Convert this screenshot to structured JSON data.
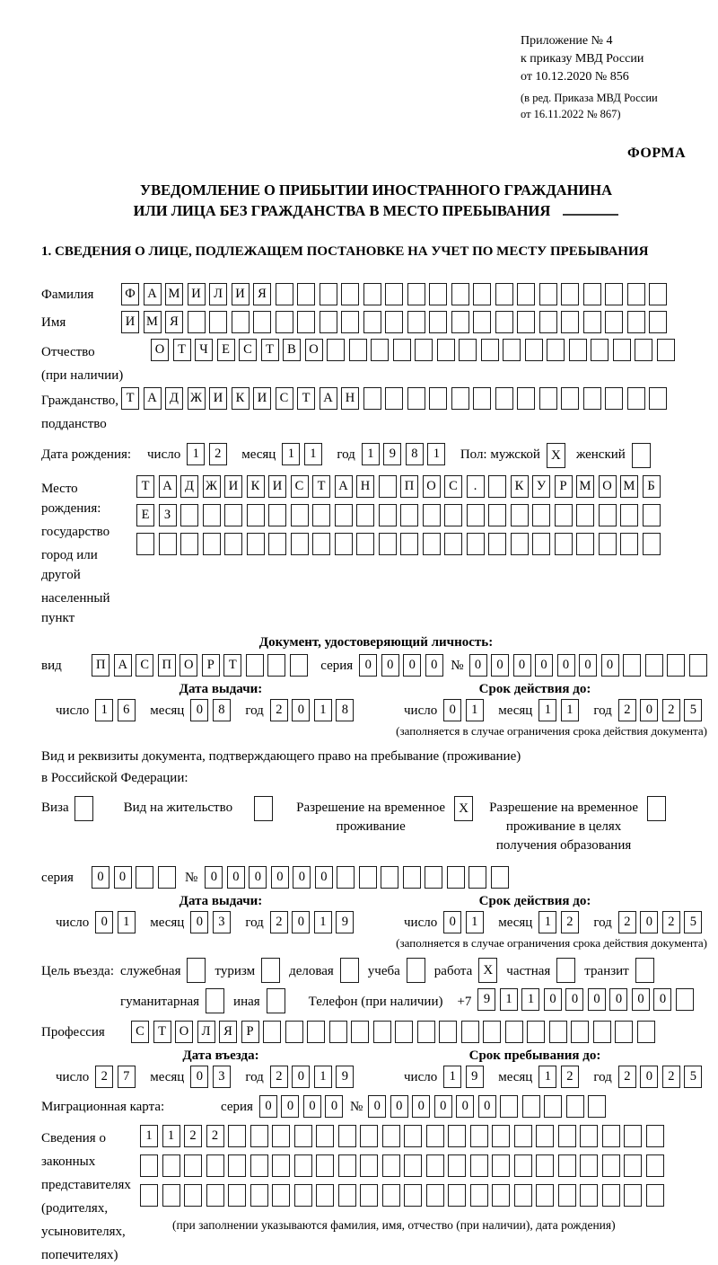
{
  "date_labels": {
    "day": "число",
    "month": "месяц",
    "year": "год"
  },
  "header_note": {
    "lines": [
      "Приложение № 4",
      "к приказу МВД России",
      "от 10.12.2020 № 856"
    ],
    "sub_lines": [
      "(в ред. Приказа МВД России",
      "от 16.11.2022 № 867)"
    ],
    "form_label": "ФОРМА"
  },
  "title": {
    "line1": "УВЕДОМЛЕНИЕ О ПРИБЫТИИ ИНОСТРАННОГО ГРАЖДАНИНА",
    "line2": "ИЛИ ЛИЦА БЕЗ ГРАЖДАНСТВА В МЕСТО ПРЕБЫВАНИЯ"
  },
  "section1_heading": "1. СВЕДЕНИЯ О ЛИЦЕ, ПОДЛЕЖАЩЕМ ПОСТАНОВКЕ НА УЧЕТ ПО МЕСТУ ПРЕБЫВАНИЯ",
  "person": {
    "surname": {
      "label": "Фамилия",
      "cells": {
        "value": "ФАМИЛИЯ",
        "count": 25
      }
    },
    "given_name": {
      "label": "Имя",
      "cells": {
        "value": "ИМЯ",
        "count": 25
      }
    },
    "patronymic": {
      "label_line1": "Отчество",
      "label_line2": "(при наличии)",
      "cells": {
        "value": "ОТЧЕСТВО",
        "count": 24
      }
    },
    "citizenship": {
      "label_line1": "Гражданство,",
      "label_line2": "подданство",
      "cells": {
        "value": "ТАДЖИКИСТАН",
        "count": 25
      }
    },
    "birth_date": {
      "label": "Дата рождения:",
      "date": {
        "day": "12",
        "month": "11",
        "year": "1981"
      },
      "sex_label": "Пол: мужской",
      "sex_male_checked": "X",
      "female_label": "женский",
      "sex_female_checked": ""
    },
    "birth_place": {
      "label_lines": [
        "Место рождения:",
        "государство",
        "город или другой",
        "населенный пункт"
      ],
      "row1": {
        "value": "ТАДЖИКИСТАН ПОС. КУРМОМБ",
        "count": 24
      },
      "row2": {
        "value": "ЕЗ",
        "count": 24
      },
      "row3": {
        "value": "",
        "count": 24
      }
    }
  },
  "identity_doc": {
    "heading": "Документ, удостоверяющий личность:",
    "type_label": "вид",
    "type": {
      "value": "ПАСПОРТ",
      "count": 10
    },
    "series_label": "серия",
    "series": {
      "value": "0000",
      "count": 4
    },
    "number_label": "№",
    "number": {
      "value": "0000000",
      "count": 11
    },
    "issue_header": "Дата выдачи:",
    "valid_header": "Срок действия до:",
    "issue": {
      "day": "16",
      "month": "08",
      "year": "2018"
    },
    "valid": {
      "day": "01",
      "month": "11",
      "year": "2025"
    },
    "note": "(заполняется в случае ограничения срока действия документа)"
  },
  "residence_doc": {
    "intro_line1": "Вид и реквизиты документа, подтверждающего право на пребывание (проживание)",
    "intro_line2": "в Российской Федерации:",
    "options": [
      {
        "lines": [
          "Виза"
        ],
        "checked": ""
      },
      {
        "lines": [
          "Вид на жительство"
        ],
        "checked": ""
      },
      {
        "lines": [
          "Разрешение на временное",
          "проживание"
        ],
        "checked": "X"
      },
      {
        "lines": [
          "Разрешение на временное",
          "проживание в целях",
          "получения образования"
        ],
        "checked": ""
      }
    ],
    "series_label": "серия",
    "series": {
      "value": "00",
      "count": 4
    },
    "number_label": "№",
    "number": {
      "value": "000000",
      "count": 14
    },
    "issue_header": "Дата выдачи:",
    "valid_header": "Срок действия до:",
    "issue": {
      "day": "01",
      "month": "03",
      "year": "2019"
    },
    "valid": {
      "day": "01",
      "month": "12",
      "year": "2025"
    },
    "note": "(заполняется в случае ограничения срока действия документа)"
  },
  "purpose": {
    "label": "Цель въезда:",
    "options_row1": [
      {
        "label": "служебная",
        "checked": ""
      },
      {
        "label": "туризм",
        "checked": ""
      },
      {
        "label": "деловая",
        "checked": ""
      },
      {
        "label": "учеба",
        "checked": ""
      },
      {
        "label": "работа",
        "checked": "X"
      },
      {
        "label": "частная",
        "checked": ""
      },
      {
        "label": "транзит",
        "checked": ""
      }
    ],
    "options_row2": [
      {
        "label": "гуманитарная",
        "checked": ""
      },
      {
        "label": "иная",
        "checked": ""
      }
    ],
    "phone_label": "Телефон (при наличии)",
    "phone_prefix": "+7",
    "phone": {
      "value": "911000000",
      "count": 10
    }
  },
  "profession": {
    "label": "Профессия",
    "cells": {
      "value": "СТОЛЯР",
      "count": 24
    }
  },
  "entry": {
    "date_header": "Дата въезда:",
    "stay_header": "Срок пребывания до:",
    "entry_date": {
      "day": "27",
      "month": "03",
      "year": "2019"
    },
    "stay_until": {
      "day": "19",
      "month": "12",
      "year": "2025"
    }
  },
  "migration_card": {
    "label": "Миграционная карта:",
    "series_label": "серия",
    "series": {
      "value": "0000",
      "count": 4
    },
    "number_label": "№",
    "number": {
      "value": "000000",
      "count": 11
    }
  },
  "legal_reps": {
    "label_lines": [
      "Сведения о",
      "законных",
      "представителях",
      "(родителях,",
      "усыновителях,",
      "попечителях)"
    ],
    "row1": {
      "value": "1122",
      "count": 24
    },
    "row2": {
      "value": "",
      "count": 24
    },
    "row3": {
      "value": "",
      "count": 24
    },
    "note": "(при заполнении указываются фамилия, имя, отчество (при наличии), дата рождения)"
  }
}
